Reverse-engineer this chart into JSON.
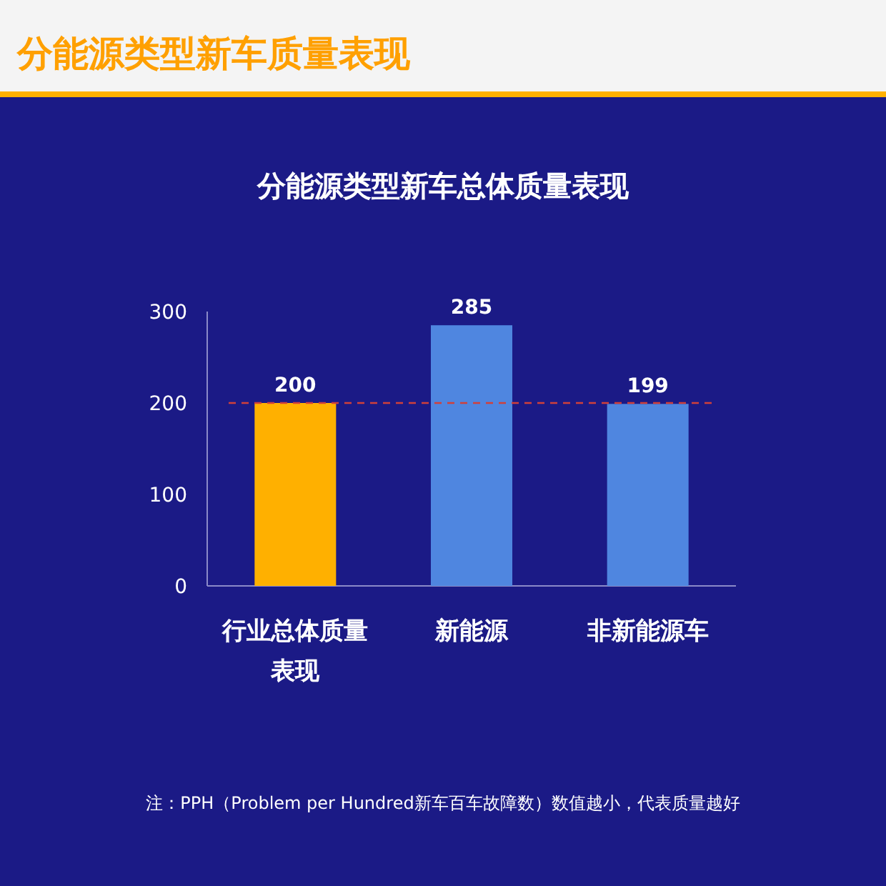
{
  "chart_data": {
    "type": "bar",
    "title": "分能源类型新车质量表现",
    "subtitle": "分能源类型新车总体质量表现",
    "categories": [
      "行业总体质量表现",
      "新能源",
      "非新能源车"
    ],
    "values": [
      200,
      285,
      199
    ],
    "colors": [
      "#ffb000",
      "#4f86e0",
      "#4f86e0"
    ],
    "ylim": [
      0,
      300
    ],
    "yticks": [
      0,
      100,
      200,
      300
    ],
    "data_labels": true,
    "ref_lines": [
      {
        "axis": "y",
        "value": 200,
        "color": "#d0403a",
        "line_style": "dashed"
      }
    ],
    "annotations": [
      "注：PPH（Problem per Hundred新车百车故障数）数值越小，代表质量越好"
    ]
  }
}
